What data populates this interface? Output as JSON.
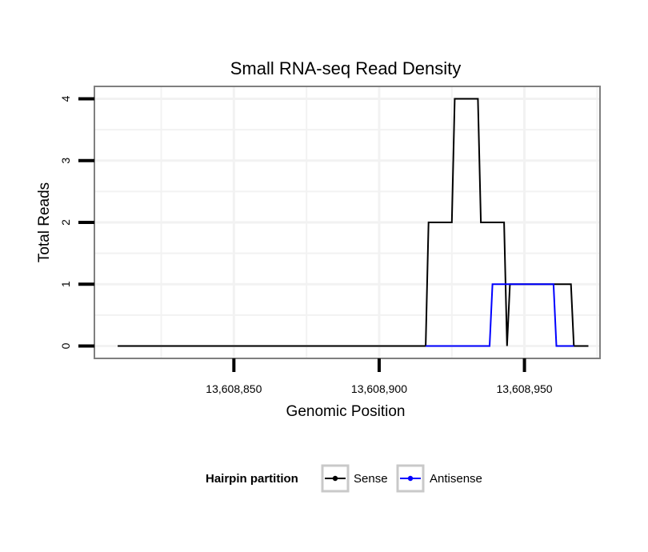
{
  "chart_data": {
    "type": "line",
    "title": "Small RNA-seq Read Density",
    "xlabel": "Genomic Position",
    "ylabel": "Total Reads",
    "xlim": [
      13608802,
      13608976
    ],
    "ylim": [
      -0.2,
      4.2
    ],
    "x_ticks": [
      13608850,
      13608900,
      13608950
    ],
    "x_tick_labels": [
      "13,608,850",
      "13,608,900",
      "13,608,950"
    ],
    "y_ticks": [
      0,
      1,
      2,
      3,
      4
    ],
    "y_tick_labels": [
      "0",
      "1",
      "2",
      "3",
      "4"
    ],
    "grid": true,
    "legend": {
      "title": "Hairpin partition",
      "placement": "bottom",
      "entries": [
        "Sense",
        "Antisense"
      ]
    },
    "series": [
      {
        "name": "Sense",
        "color": "#000000",
        "x": [
          13608810,
          13608916,
          13608917,
          13608925,
          13608926,
          13608934,
          13608935,
          13608943,
          13608944,
          13608945,
          13608966,
          13608967,
          13608972
        ],
        "y": [
          0,
          0,
          2,
          2,
          4,
          4,
          2,
          2,
          0,
          1,
          1,
          0,
          0
        ]
      },
      {
        "name": "Antisense",
        "color": "#0000ff",
        "x": [
          13608916,
          13608938,
          13608939,
          13608960,
          13608961,
          13608967
        ],
        "y": [
          0,
          0,
          1,
          1,
          0,
          0
        ]
      }
    ]
  }
}
